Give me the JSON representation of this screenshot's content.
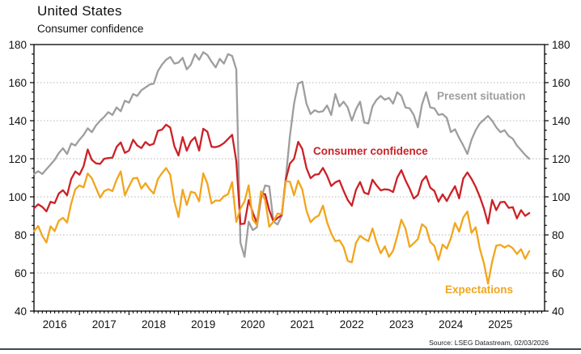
{
  "header": {
    "title": "United States",
    "subtitle": "Consumer confidence"
  },
  "source_note": "Source: LSEG Datastream, 02/03/2026",
  "chart_data": {
    "type": "line",
    "title": "United States",
    "subtitle": "Consumer confidence",
    "frequency": "monthly",
    "x_start": "2016-02",
    "x_end": "2026-02",
    "x_tick_years": [
      "2016",
      "2017",
      "2018",
      "2019",
      "2020",
      "2021",
      "2022",
      "2023",
      "2024",
      "2025"
    ],
    "ylim": [
      40,
      180
    ],
    "y_ticks": [
      40,
      60,
      80,
      100,
      120,
      140,
      160,
      180
    ],
    "grid": "horizontal-dotted",
    "legend_position": "inline-labels",
    "series": [
      {
        "name": "Present situation",
        "color": "#9e9e9e",
        "values": [
          112.0,
          113.5,
          112.0,
          114.5,
          117.0,
          119.5,
          123.0,
          125.5,
          122.5,
          128.0,
          127.0,
          130.0,
          132.5,
          136.0,
          134.0,
          137.5,
          140.0,
          142.0,
          144.5,
          143.0,
          147.0,
          145.0,
          150.5,
          149.5,
          154.0,
          153.0,
          156.0,
          157.5,
          159.0,
          159.5,
          166.0,
          169.5,
          172.0,
          173.5,
          170.0,
          170.5,
          173.0,
          167.0,
          169.5,
          175.0,
          172.0,
          176.0,
          174.5,
          171.0,
          168.0,
          172.5,
          170.0,
          175.0,
          174.0,
          167.0,
          76.0,
          68.5,
          87.0,
          82.5,
          84.0,
          99.0,
          106.0,
          105.5,
          87.0,
          85.5,
          90.0,
          110.0,
          132.0,
          149.0,
          159.5,
          160.5,
          149.0,
          143.5,
          145.5,
          144.5,
          145.0,
          148.0,
          143.0,
          154.0,
          147.5,
          150.0,
          147.0,
          140.0,
          146.0,
          150.0,
          139.0,
          138.5,
          147.5,
          151.0,
          153.0,
          151.0,
          152.0,
          149.0,
          155.0,
          153.0,
          147.0,
          146.5,
          143.0,
          136.5,
          148.5,
          155.0,
          147.0,
          146.5,
          143.0,
          143.5,
          141.5,
          134.0,
          135.5,
          131.0,
          127.0,
          122.5,
          130.0,
          135.0,
          138.5,
          140.5,
          142.5,
          140.0,
          136.5,
          134.0,
          135.0,
          132.0,
          130.5,
          127.0,
          124.5,
          122.0,
          120.0
        ]
      },
      {
        "name": "Consumer confidence",
        "color": "#cc2127",
        "values": [
          94.0,
          96.1,
          94.7,
          92.4,
          97.4,
          96.7,
          101.8,
          103.5,
          100.8,
          109.4,
          113.3,
          111.6,
          116.1,
          124.9,
          119.4,
          117.6,
          117.3,
          120.0,
          120.4,
          120.6,
          126.2,
          128.6,
          123.1,
          124.3,
          130.0,
          127.0,
          125.6,
          128.8,
          127.1,
          127.9,
          134.7,
          135.3,
          137.9,
          136.4,
          126.6,
          121.7,
          131.4,
          124.2,
          129.2,
          131.3,
          124.3,
          135.8,
          134.2,
          126.3,
          126.1,
          126.8,
          128.2,
          130.4,
          132.6,
          118.8,
          85.7,
          85.9,
          98.3,
          91.7,
          86.3,
          101.3,
          101.4,
          92.9,
          87.1,
          88.9,
          90.4,
          109.0,
          117.5,
          120.0,
          128.9,
          125.1,
          115.2,
          109.8,
          111.6,
          111.9,
          115.2,
          111.1,
          105.7,
          107.6,
          108.6,
          103.2,
          98.4,
          95.3,
          103.6,
          107.8,
          102.2,
          101.4,
          109.0,
          106.0,
          103.4,
          104.0,
          103.7,
          102.5,
          110.1,
          114.0,
          108.7,
          104.3,
          99.1,
          101.0,
          108.3,
          110.9,
          104.8,
          103.1,
          97.5,
          101.3,
          97.8,
          101.9,
          105.6,
          99.2,
          109.6,
          112.8,
          109.5,
          105.3,
          100.1,
          93.9,
          86.0,
          98.4,
          93.0,
          97.2,
          97.4,
          94.2,
          94.6,
          88.7,
          93.0,
          90.0,
          91.5
        ]
      },
      {
        "name": "Expectations",
        "color": "#f2a51c",
        "values": [
          82.0,
          84.7,
          79.5,
          76.0,
          84.5,
          82.0,
          87.5,
          89.0,
          86.5,
          96.5,
          104.0,
          106.0,
          105.0,
          112.3,
          109.8,
          104.7,
          99.6,
          103.0,
          104.0,
          103.0,
          109.0,
          113.3,
          100.8,
          105.5,
          109.7,
          110.0,
          104.3,
          107.2,
          104.0,
          101.7,
          109.3,
          112.5,
          115.1,
          111.6,
          97.7,
          89.4,
          103.8,
          95.7,
          102.7,
          102.1,
          97.6,
          112.4,
          107.0,
          96.5,
          98.1,
          97.9,
          100.3,
          101.4,
          107.8,
          86.8,
          93.8,
          97.6,
          106.1,
          88.0,
          85.2,
          102.9,
          98.2,
          84.3,
          87.0,
          91.2,
          90.9,
          108.3,
          107.9,
          100.9,
          108.5,
          103.8,
          92.8,
          86.7,
          89.0,
          90.2,
          95.4,
          86.7,
          80.8,
          76.7,
          77.2,
          73.7,
          66.4,
          65.6,
          75.8,
          79.5,
          77.9,
          76.7,
          83.4,
          76.0,
          70.4,
          74.0,
          68.5,
          71.7,
          79.3,
          88.0,
          83.3,
          73.7,
          75.6,
          77.8,
          85.6,
          83.8,
          76.3,
          74.2,
          66.9,
          74.9,
          72.8,
          78.2,
          86.3,
          81.7,
          89.1,
          92.3,
          81.1,
          84.0,
          72.9,
          65.2,
          54.4,
          66.0,
          74.4,
          74.8,
          73.4,
          74.5,
          73.0,
          70.0,
          72.5,
          67.5,
          71.5
        ]
      }
    ]
  }
}
